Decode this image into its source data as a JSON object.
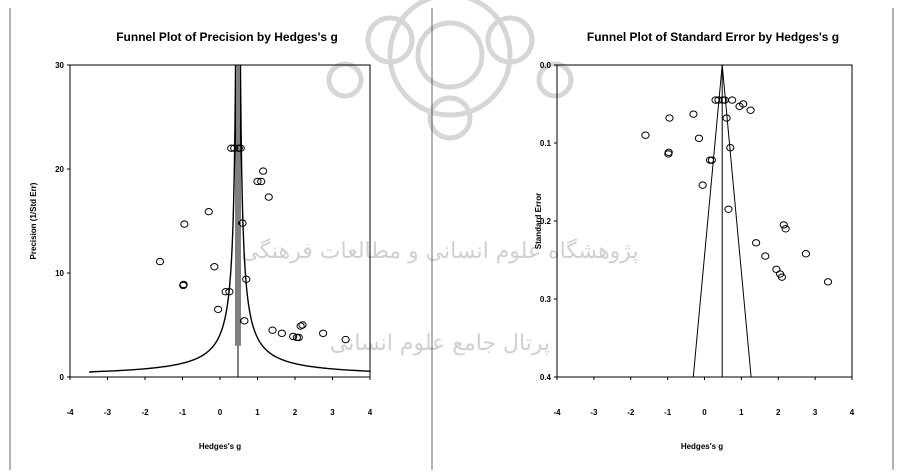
{
  "watermark": {
    "line1": "پژوهشگاه علوم انسانی و مطالعات فرهنگی",
    "line2": "پرتال جامع علوم انسانی"
  },
  "chart_data": [
    {
      "type": "scatter",
      "title": "Funnel Plot of Precision by Hedges's g",
      "xlabel": "Hedges's g",
      "ylabel": "Precision (1/Std Err)",
      "xlim": [
        -4,
        4
      ],
      "ylim": [
        0,
        30
      ],
      "x_ticks": [
        -4,
        -3,
        -2,
        -1,
        0,
        1,
        2,
        3,
        4
      ],
      "y_ticks": [
        0,
        10,
        20,
        30
      ],
      "grid": false,
      "center": 0.48,
      "funnel_constant": 1.96,
      "points": [
        {
          "x": -1.6,
          "y": 11.1
        },
        {
          "x": -0.95,
          "y": 14.7
        },
        {
          "x": -0.97,
          "y": 8.9
        },
        {
          "x": -0.98,
          "y": 8.8
        },
        {
          "x": -0.3,
          "y": 15.9
        },
        {
          "x": -0.15,
          "y": 10.6
        },
        {
          "x": -0.05,
          "y": 6.5
        },
        {
          "x": 0.15,
          "y": 8.2
        },
        {
          "x": 0.25,
          "y": 8.2
        },
        {
          "x": 0.3,
          "y": 22.0
        },
        {
          "x": 0.38,
          "y": 22.0
        },
        {
          "x": 0.5,
          "y": 22.0
        },
        {
          "x": 0.55,
          "y": 22.0
        },
        {
          "x": 0.6,
          "y": 14.8
        },
        {
          "x": 0.65,
          "y": 5.4
        },
        {
          "x": 0.7,
          "y": 9.4
        },
        {
          "x": 1.0,
          "y": 18.8
        },
        {
          "x": 1.1,
          "y": 18.8
        },
        {
          "x": 1.15,
          "y": 19.8
        },
        {
          "x": 1.3,
          "y": 17.3
        },
        {
          "x": 1.4,
          "y": 4.5
        },
        {
          "x": 1.65,
          "y": 4.2
        },
        {
          "x": 1.95,
          "y": 3.9
        },
        {
          "x": 2.05,
          "y": 3.8
        },
        {
          "x": 2.15,
          "y": 4.9
        },
        {
          "x": 2.2,
          "y": 5.0
        },
        {
          "x": 2.1,
          "y": 3.8
        },
        {
          "x": 2.75,
          "y": 4.2
        },
        {
          "x": 3.35,
          "y": 3.6
        }
      ]
    },
    {
      "type": "scatter",
      "title": "Funnel Plot of Standard Error by Hedges's g",
      "xlabel": "Hedges's g",
      "ylabel": "Standard Error",
      "xlim": [
        -4,
        4
      ],
      "ylim": [
        0.0,
        0.4
      ],
      "y_inverted": true,
      "x_ticks": [
        -4,
        -3,
        -2,
        -1,
        0,
        1,
        2,
        3,
        4
      ],
      "y_ticks": [
        0.0,
        0.1,
        0.2,
        0.3,
        0.4
      ],
      "y_tick_labels": [
        "0.0",
        "0.1",
        "0.2",
        "0.3",
        "0.4"
      ],
      "grid": false,
      "center": 0.48,
      "funnel_constant": 1.96,
      "points": [
        {
          "x": -1.6,
          "y": 0.09
        },
        {
          "x": -0.95,
          "y": 0.068
        },
        {
          "x": -0.97,
          "y": 0.112
        },
        {
          "x": -0.98,
          "y": 0.114
        },
        {
          "x": -0.3,
          "y": 0.063
        },
        {
          "x": -0.15,
          "y": 0.094
        },
        {
          "x": -0.05,
          "y": 0.154
        },
        {
          "x": 0.15,
          "y": 0.122
        },
        {
          "x": 0.2,
          "y": 0.122
        },
        {
          "x": 0.3,
          "y": 0.045
        },
        {
          "x": 0.38,
          "y": 0.045
        },
        {
          "x": 0.5,
          "y": 0.045
        },
        {
          "x": 0.55,
          "y": 0.045
        },
        {
          "x": 0.6,
          "y": 0.068
        },
        {
          "x": 0.65,
          "y": 0.185
        },
        {
          "x": 0.7,
          "y": 0.106
        },
        {
          "x": 0.75,
          "y": 0.045
        },
        {
          "x": 0.95,
          "y": 0.053
        },
        {
          "x": 1.05,
          "y": 0.05
        },
        {
          "x": 1.25,
          "y": 0.058
        },
        {
          "x": 1.4,
          "y": 0.228
        },
        {
          "x": 1.65,
          "y": 0.245
        },
        {
          "x": 1.95,
          "y": 0.262
        },
        {
          "x": 2.05,
          "y": 0.268
        },
        {
          "x": 2.1,
          "y": 0.272
        },
        {
          "x": 2.15,
          "y": 0.205
        },
        {
          "x": 2.2,
          "y": 0.21
        },
        {
          "x": 2.75,
          "y": 0.242
        },
        {
          "x": 3.35,
          "y": 0.278
        }
      ]
    }
  ]
}
